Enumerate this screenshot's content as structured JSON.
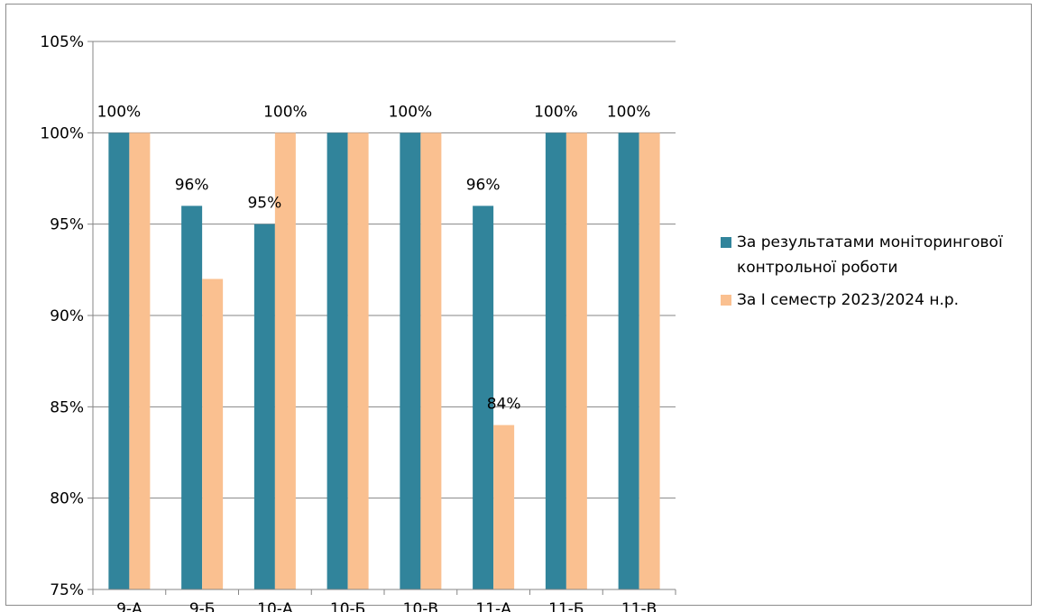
{
  "chart_data": {
    "type": "bar",
    "title": "",
    "xlabel": "",
    "ylabel": "",
    "categories": [
      "9-А",
      "9-Б",
      "10-А",
      "10-Б",
      "10-В",
      "11-А",
      "11-Б",
      "11-В"
    ],
    "series": [
      {
        "name": "За результатами моніторингової контрольної роботи",
        "color": "#31849B",
        "values": [
          100,
          96,
          95,
          100,
          100,
          96,
          100,
          100
        ]
      },
      {
        "name": "За І семестр 2023/2024 н.р.",
        "color": "#FAC090",
        "values": [
          100,
          92,
          100,
          100,
          100,
          84,
          100,
          100
        ]
      }
    ],
    "data_labels": [
      {
        "category": "9-А",
        "series": 0,
        "text": "100%"
      },
      {
        "category": "9-Б",
        "series": 0,
        "text": "96%"
      },
      {
        "category": "10-А",
        "series": 0,
        "text": "95%"
      },
      {
        "category": "10-А",
        "series": 1,
        "text": "100%"
      },
      {
        "category": "10-В",
        "series": 0,
        "text": "100%"
      },
      {
        "category": "11-А",
        "series": 0,
        "text": "96%"
      },
      {
        "category": "11-А",
        "series": 1,
        "text": "84%"
      },
      {
        "category": "11-Б",
        "series": 0,
        "text": "100%"
      },
      {
        "category": "11-В",
        "series": 0,
        "text": "100%"
      }
    ],
    "y_ticks": [
      "75%",
      "80%",
      "85%",
      "90%",
      "95%",
      "100%",
      "105%"
    ],
    "ylim": [
      75,
      105
    ],
    "y_step": 5,
    "grid": true,
    "legend_position": "right"
  }
}
